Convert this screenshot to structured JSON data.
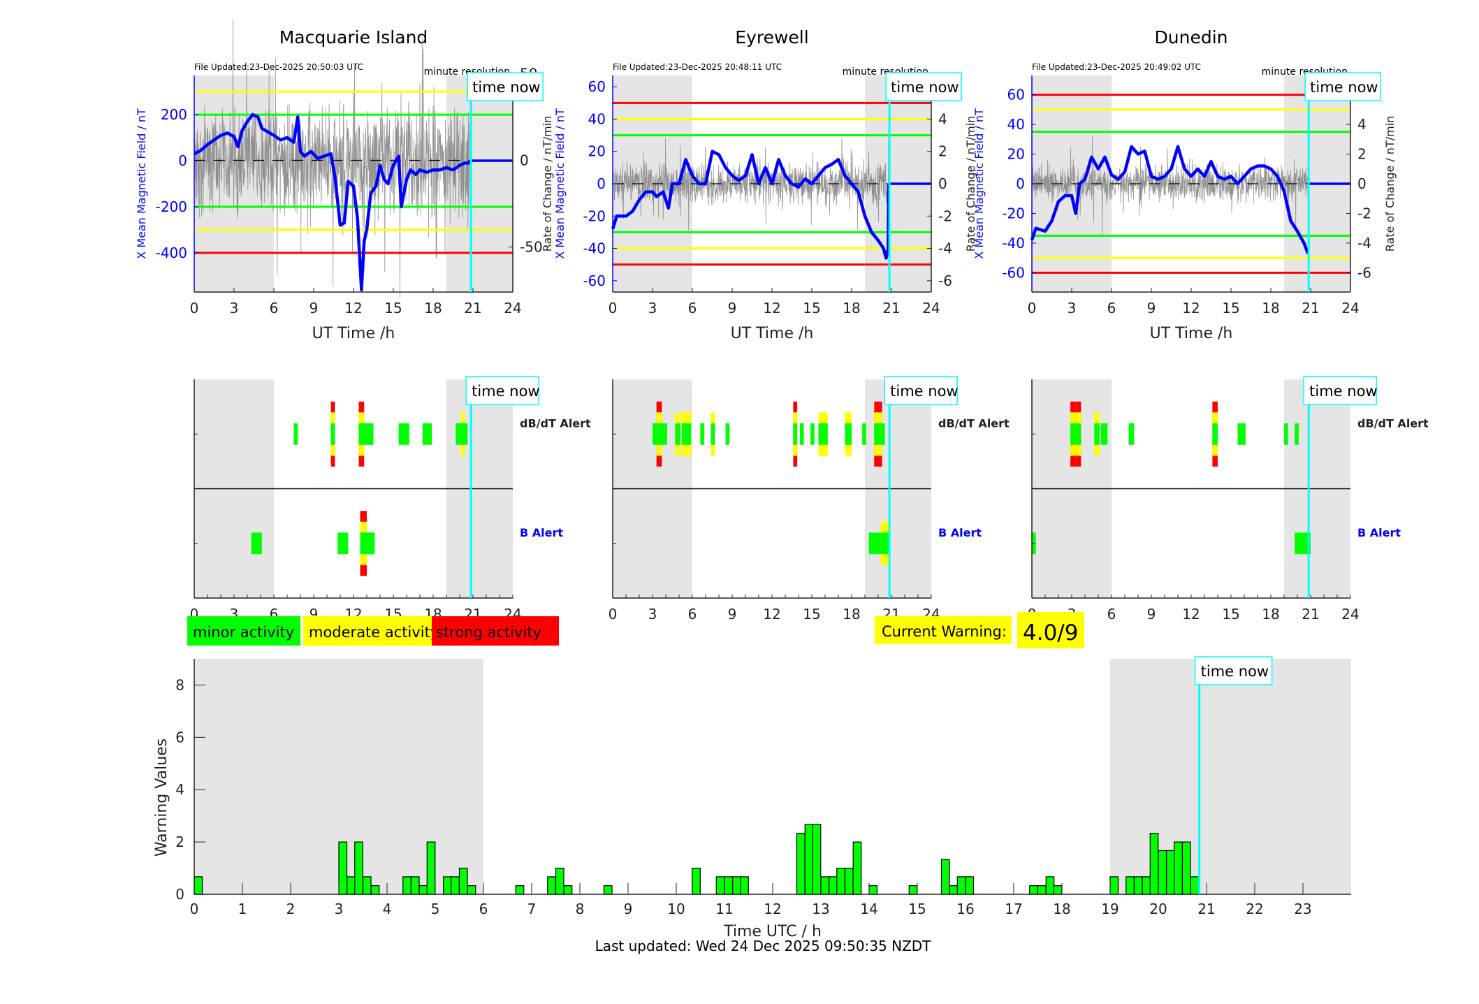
{
  "chart_data": [
    {
      "type": "line",
      "panel": "station-field",
      "title": "Macquarie Island",
      "file_updated": "File Updated:23-Dec-2025 20:50:03 UTC",
      "resolution_label": "minute resolution",
      "time_now_label": "time now",
      "time_now_h": 20.85,
      "xlabel": "UT Time /h",
      "ylabel_left": "X Mean Magnetic Field / nT",
      "ylabel_right": "",
      "xlim": [
        0,
        24
      ],
      "xticks": [
        0,
        3,
        6,
        9,
        12,
        15,
        18,
        21,
        24
      ],
      "ylim_left": [
        -570,
        370
      ],
      "yticks_left": [
        -400,
        -200,
        0,
        200
      ],
      "ylim_right": [
        -76,
        49
      ],
      "yticks_right": [
        -50,
        0,
        50
      ],
      "night_shading_h": [
        [
          0,
          6
        ],
        [
          19,
          24
        ]
      ],
      "threshold_lines": [
        {
          "value": 300,
          "color": "#ffff00"
        },
        {
          "value": 200,
          "color": "#00ff00"
        },
        {
          "value": -200,
          "color": "#00ff00"
        },
        {
          "value": -300,
          "color": "#ffff00"
        },
        {
          "value": -400,
          "color": "#ff0000"
        }
      ],
      "series": [
        {
          "name": "X Mean Magnetic Field",
          "color": "#0000ff",
          "x": [
            0,
            0.5,
            1,
            1.5,
            2,
            2.5,
            3,
            3.3,
            3.6,
            4,
            4.4,
            4.8,
            5.1,
            5.4,
            6,
            6.5,
            7,
            7.5,
            7.8,
            8,
            8.3,
            8.8,
            9.3,
            9.8,
            10.3,
            10.6,
            11,
            11.3,
            11.6,
            12,
            12.3,
            12.6,
            12.8,
            13,
            13.3,
            13.7,
            14,
            14.3,
            14.6,
            15,
            15.4,
            15.6,
            16,
            16.3,
            16.7,
            17,
            17.5,
            18,
            18.5,
            19,
            19.5,
            20,
            20.4,
            20.8
          ],
          "y": [
            30,
            45,
            70,
            90,
            110,
            120,
            105,
            60,
            130,
            170,
            200,
            190,
            140,
            130,
            110,
            90,
            100,
            80,
            190,
            40,
            20,
            40,
            10,
            20,
            30,
            -70,
            -280,
            -270,
            -90,
            -110,
            -250,
            -560,
            -350,
            -300,
            -140,
            -110,
            -20,
            -80,
            -100,
            -20,
            20,
            -200,
            -80,
            -40,
            -60,
            -40,
            -50,
            -40,
            -40,
            -30,
            -40,
            -20,
            -10,
            -10
          ]
        },
        {
          "name": "Rate of Change (dB/dt)",
          "color": "#808080",
          "noise_scale": 30
        }
      ]
    },
    {
      "type": "line",
      "panel": "station-field",
      "title": "Eyrewell",
      "file_updated": "File Updated:23-Dec-2025 20:48:11 UTC",
      "resolution_label": "minute resolution",
      "time_now_label": "time now",
      "time_now_h": 20.85,
      "xlabel": "UT Time /h",
      "ylabel_left": "X Mean Magnetic Field / nT",
      "ylabel_right": "Rate of Change / nT/min",
      "xlim": [
        0,
        24
      ],
      "xticks": [
        0,
        3,
        6,
        9,
        12,
        15,
        18,
        21,
        24
      ],
      "ylim_left": [
        -67,
        67
      ],
      "yticks_left": [
        -60,
        -40,
        -20,
        0,
        20,
        40,
        60
      ],
      "ylim_right": [
        -6.7,
        6.7
      ],
      "yticks_right": [
        -6,
        -4,
        -2,
        0,
        2,
        4,
        6
      ],
      "night_shading_h": [
        [
          0,
          6
        ],
        [
          19,
          24
        ]
      ],
      "threshold_lines": [
        {
          "value": 50,
          "color": "#ff0000"
        },
        {
          "value": 40,
          "color": "#ffff00"
        },
        {
          "value": 30,
          "color": "#00ff00"
        },
        {
          "value": -30,
          "color": "#00ff00"
        },
        {
          "value": -40,
          "color": "#ffff00"
        },
        {
          "value": -50,
          "color": "#ff0000"
        }
      ],
      "series": [
        {
          "name": "X Mean Magnetic Field",
          "color": "#0000ff",
          "x": [
            0,
            0.3,
            1,
            1.5,
            2,
            2.5,
            3,
            3.3,
            3.8,
            4.2,
            4.5,
            5,
            5.5,
            6,
            6.5,
            7,
            7.5,
            8,
            8.5,
            9,
            9.5,
            10,
            10.5,
            11,
            11.5,
            12,
            12.5,
            13,
            13.5,
            14,
            14.5,
            15,
            15.5,
            16,
            16.5,
            17,
            17.5,
            18,
            18.5,
            19,
            19.5,
            20,
            20.4,
            20.6,
            20.75,
            20.8
          ],
          "y": [
            -28,
            -20,
            -20,
            -17,
            -10,
            -5,
            -5,
            -8,
            -5,
            -15,
            0,
            0,
            15,
            5,
            0,
            0,
            20,
            18,
            10,
            5,
            2,
            5,
            18,
            0,
            10,
            0,
            15,
            5,
            0,
            -2,
            3,
            0,
            5,
            10,
            12,
            15,
            5,
            0,
            -5,
            -20,
            -30,
            -35,
            -40,
            -46,
            -40,
            0
          ]
        },
        {
          "name": "Rate of Change (dB/dt)",
          "color": "#808080",
          "noise_scale": 1.2
        }
      ]
    },
    {
      "type": "line",
      "panel": "station-field",
      "title": "Dunedin",
      "file_updated": "File Updated:23-Dec-2025 20:49:02 UTC",
      "resolution_label": "minute resolution",
      "time_now_label": "time now",
      "time_now_h": 20.85,
      "xlabel": "UT Time /h",
      "ylabel_left": "X Mean Magnetic Field / nT",
      "ylabel_right": "Rate of Change / nT/min",
      "xlim": [
        0,
        24
      ],
      "xticks": [
        0,
        3,
        6,
        9,
        12,
        15,
        18,
        21,
        24
      ],
      "ylim_left": [
        -73,
        73
      ],
      "yticks_left": [
        -60,
        -40,
        -20,
        0,
        20,
        40,
        60
      ],
      "ylim_right": [
        -7.3,
        7.3
      ],
      "yticks_right": [
        -6,
        -4,
        -2,
        0,
        2,
        4,
        6
      ],
      "night_shading_h": [
        [
          0,
          6
        ],
        [
          19,
          24
        ]
      ],
      "threshold_lines": [
        {
          "value": 60,
          "color": "#ff0000"
        },
        {
          "value": 50,
          "color": "#ffff00"
        },
        {
          "value": 35,
          "color": "#00ff00"
        },
        {
          "value": -35,
          "color": "#00ff00"
        },
        {
          "value": -50,
          "color": "#ffff00"
        },
        {
          "value": -60,
          "color": "#ff0000"
        }
      ],
      "series": [
        {
          "name": "X Mean Magnetic Field",
          "color": "#0000ff",
          "x": [
            0,
            0.3,
            1,
            1.5,
            2,
            2.5,
            3,
            3.3,
            3.6,
            4,
            4.5,
            5,
            5.5,
            6,
            6.5,
            7,
            7.5,
            8,
            8.5,
            9,
            9.5,
            10,
            10.5,
            11,
            11.5,
            12,
            12.5,
            13,
            13.5,
            14,
            14.5,
            15,
            15.5,
            16,
            16.5,
            17,
            17.5,
            18,
            18.5,
            19,
            19.5,
            20,
            20.5,
            20.8
          ],
          "y": [
            -38,
            -30,
            -32,
            -25,
            -12,
            -8,
            -8,
            -20,
            0,
            3,
            18,
            10,
            18,
            6,
            3,
            8,
            25,
            20,
            22,
            5,
            3,
            5,
            10,
            25,
            10,
            5,
            10,
            5,
            15,
            5,
            3,
            5,
            0,
            5,
            10,
            12,
            12,
            10,
            5,
            -5,
            -25,
            -32,
            -40,
            -47
          ]
        },
        {
          "name": "Rate of Change (dB/dt)",
          "color": "#808080",
          "noise_scale": 1.2
        }
      ]
    },
    {
      "type": "heatmap",
      "panel": "alerts",
      "station": "Macquarie Island",
      "xlim": [
        0,
        24
      ],
      "xticks": [
        0,
        3,
        6,
        9,
        12,
        15,
        18,
        21,
        24
      ],
      "rows": [
        "dB/dT Alert",
        "B Alert"
      ],
      "time_now_label": "time now",
      "time_now_h": 20.85,
      "night_shading_h": [
        [
          0,
          6
        ],
        [
          19,
          24
        ]
      ],
      "dbdt_blocks": [
        [
          7.5,
          7.8,
          1
        ],
        [
          10.3,
          10.6,
          3
        ],
        [
          12.4,
          12.8,
          3
        ],
        [
          12.8,
          13.1,
          1
        ],
        [
          13.1,
          13.5,
          1
        ],
        [
          15.4,
          16.2,
          1
        ],
        [
          17.2,
          17.5,
          1
        ],
        [
          17.5,
          17.9,
          1
        ],
        [
          19.7,
          20.1,
          1
        ],
        [
          20.1,
          20.4,
          2
        ],
        [
          20.4,
          20.6,
          1
        ]
      ],
      "b_blocks": [
        [
          4.3,
          4.7,
          1
        ],
        [
          4.7,
          5.1,
          1
        ],
        [
          10.8,
          11.6,
          1
        ],
        [
          12.5,
          13.0,
          3
        ],
        [
          13.0,
          13.6,
          1
        ]
      ]
    },
    {
      "type": "heatmap",
      "panel": "alerts",
      "station": "Eyrewell",
      "xlim": [
        0,
        24
      ],
      "xticks": [
        0,
        3,
        6,
        9,
        12,
        15,
        18,
        21,
        24
      ],
      "rows": [
        "dB/dT Alert",
        "B Alert"
      ],
      "time_now_label": "time now",
      "time_now_h": 20.85,
      "night_shading_h": [
        [
          0,
          6
        ],
        [
          19,
          24
        ]
      ],
      "dbdt_blocks": [
        [
          3.0,
          3.3,
          1
        ],
        [
          3.3,
          3.7,
          3
        ],
        [
          3.7,
          3.9,
          1
        ],
        [
          3.9,
          4.1,
          1
        ],
        [
          4.7,
          5.1,
          2
        ],
        [
          5.2,
          5.9,
          2
        ],
        [
          6.6,
          6.9,
          1
        ],
        [
          7.4,
          7.7,
          2
        ],
        [
          8.5,
          8.8,
          1
        ],
        [
          13.6,
          13.9,
          3
        ],
        [
          14.1,
          14.4,
          1
        ],
        [
          14.9,
          15.2,
          1
        ],
        [
          15.5,
          16.2,
          2
        ],
        [
          17.5,
          18.0,
          2
        ],
        [
          18.8,
          19.1,
          1
        ],
        [
          19.7,
          20.3,
          3
        ],
        [
          20.3,
          20.5,
          1
        ]
      ],
      "b_blocks": [
        [
          19.3,
          20.2,
          1
        ],
        [
          20.2,
          20.8,
          2
        ]
      ]
    },
    {
      "type": "heatmap",
      "panel": "alerts",
      "station": "Dunedin",
      "xlim": [
        0,
        24
      ],
      "xticks": [
        0,
        3,
        6,
        9,
        12,
        15,
        18,
        21,
        24
      ],
      "rows": [
        "dB/dT Alert",
        "B Alert"
      ],
      "time_now_label": "time now",
      "time_now_h": 20.85,
      "night_shading_h": [
        [
          0,
          6
        ],
        [
          19,
          24
        ]
      ],
      "dbdt_blocks": [
        [
          2.9,
          3.3,
          3
        ],
        [
          3.3,
          3.7,
          3
        ],
        [
          4.7,
          5.1,
          2
        ],
        [
          5.2,
          5.7,
          1
        ],
        [
          7.3,
          7.7,
          1
        ],
        [
          13.6,
          14.0,
          3
        ],
        [
          15.5,
          15.8,
          1
        ],
        [
          15.8,
          16.1,
          1
        ],
        [
          19.0,
          19.3,
          1
        ],
        [
          19.8,
          20.1,
          1
        ]
      ],
      "b_blocks": [
        [
          0,
          0.3,
          1
        ],
        [
          19.8,
          20.3,
          1
        ],
        [
          20.3,
          21.0,
          1
        ]
      ]
    },
    {
      "type": "bar",
      "panel": "warning-values",
      "xlabel": "Time UTC / h",
      "ylabel": "Warning Values",
      "xlim": [
        0,
        24
      ],
      "ylim": [
        0,
        9
      ],
      "xticks": [
        0,
        1,
        2,
        3,
        4,
        5,
        6,
        7,
        8,
        9,
        10,
        11,
        12,
        13,
        14,
        15,
        16,
        17,
        18,
        19,
        20,
        21,
        22,
        23
      ],
      "yticks": [
        0,
        2,
        4,
        6,
        8
      ],
      "bar_width_h": 0.1667,
      "bar_color": "#00ff00",
      "night_shading_h": [
        [
          0,
          6
        ],
        [
          19,
          24
        ]
      ],
      "time_now_label": "time now",
      "time_now_h": 20.85,
      "bars": [
        [
          0.0,
          0.67
        ],
        [
          3.0,
          2.0
        ],
        [
          3.17,
          0.67
        ],
        [
          3.33,
          2.0
        ],
        [
          3.5,
          0.67
        ],
        [
          3.67,
          0.33
        ],
        [
          4.33,
          0.67
        ],
        [
          4.5,
          0.67
        ],
        [
          4.67,
          0.33
        ],
        [
          4.83,
          2.0
        ],
        [
          5.17,
          0.67
        ],
        [
          5.33,
          0.67
        ],
        [
          5.5,
          1.0
        ],
        [
          5.67,
          0.33
        ],
        [
          6.67,
          0.33
        ],
        [
          7.33,
          0.67
        ],
        [
          7.5,
          1.0
        ],
        [
          7.67,
          0.33
        ],
        [
          8.5,
          0.33
        ],
        [
          10.33,
          1.0
        ],
        [
          10.83,
          0.67
        ],
        [
          11.0,
          0.67
        ],
        [
          11.17,
          0.67
        ],
        [
          11.33,
          0.67
        ],
        [
          12.5,
          2.33
        ],
        [
          12.67,
          2.67
        ],
        [
          12.83,
          2.67
        ],
        [
          13.0,
          0.67
        ],
        [
          13.17,
          0.67
        ],
        [
          13.33,
          1.0
        ],
        [
          13.5,
          1.0
        ],
        [
          13.67,
          2.0
        ],
        [
          14.0,
          0.33
        ],
        [
          14.83,
          0.33
        ],
        [
          15.5,
          1.33
        ],
        [
          15.67,
          0.33
        ],
        [
          15.83,
          0.67
        ],
        [
          16.0,
          0.67
        ],
        [
          17.33,
          0.33
        ],
        [
          17.5,
          0.33
        ],
        [
          17.67,
          0.67
        ],
        [
          17.83,
          0.33
        ],
        [
          19.0,
          0.67
        ],
        [
          19.33,
          0.67
        ],
        [
          19.5,
          0.67
        ],
        [
          19.67,
          0.67
        ],
        [
          19.83,
          2.33
        ],
        [
          20.0,
          1.67
        ],
        [
          20.17,
          1.67
        ],
        [
          20.33,
          2.0
        ],
        [
          20.5,
          2.0
        ],
        [
          20.67,
          0.67
        ]
      ]
    }
  ],
  "labels": {
    "dbdt_alert": "dB/dT Alert",
    "b_alert": "B Alert",
    "legend_minor": "minor activity",
    "legend_moderate": "moderate activity",
    "legend_strong": "strong activity",
    "current_warning_label": "Current Warning:",
    "current_warning_value": "4.0/9",
    "last_updated": "Last updated: Wed 24 Dec 2025 09:50:35 NZDT"
  },
  "colors": {
    "minor": "#00ff00",
    "moderate": "#ffff00",
    "strong": "#ff0000",
    "field_line": "#0000ff",
    "time_now": "#00ffff",
    "night": "#e5e5e5"
  }
}
